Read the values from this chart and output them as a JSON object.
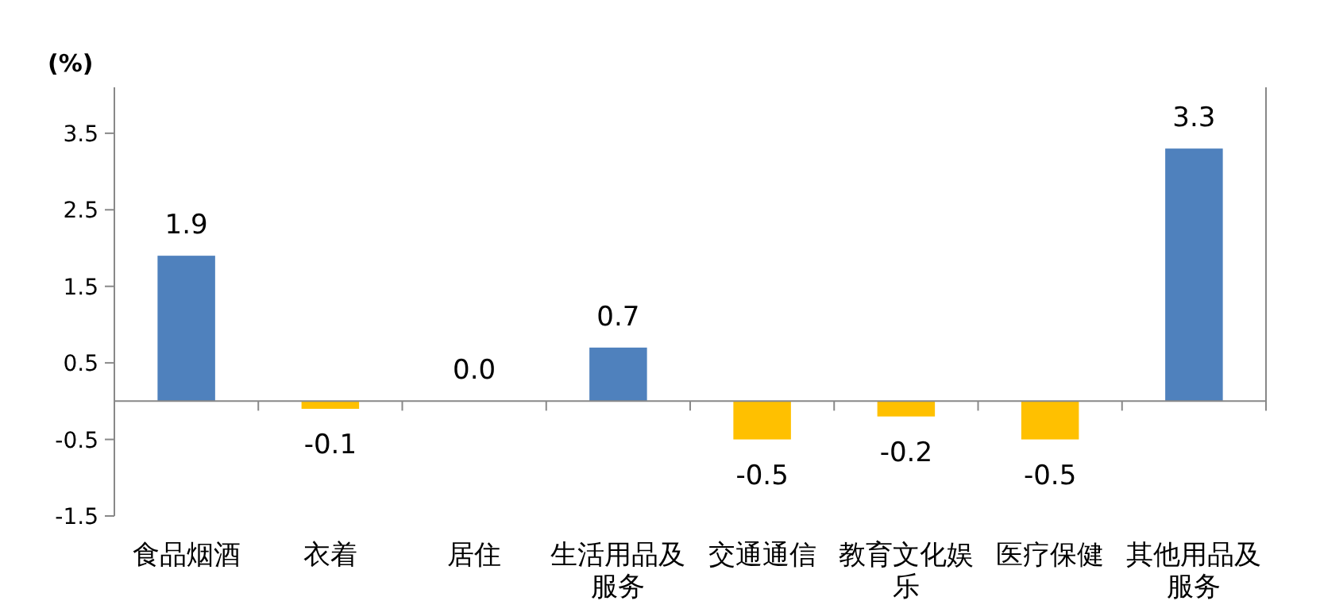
{
  "chart_data": {
    "type": "bar",
    "ylabel": "(%)",
    "categories": [
      "食品烟酒",
      "衣着",
      "居住",
      "生活用品及服务",
      "交通通信",
      "教育文化娱乐",
      "医疗保健",
      "其他用品及服务"
    ],
    "values": [
      1.9,
      -0.1,
      0.0,
      0.7,
      -0.5,
      -0.2,
      -0.5,
      3.3
    ],
    "colors": [
      "#4f81bd",
      "#ffc000",
      "#4f81bd",
      "#4f81bd",
      "#ffc000",
      "#ffc000",
      "#ffc000",
      "#4f81bd"
    ],
    "ylim": [
      -1.5,
      4.1
    ],
    "yticks": [
      -1.5,
      -0.5,
      0.5,
      1.5,
      2.5,
      3.5
    ],
    "value_labels": [
      "1.9",
      "-0.1",
      "0.0",
      "0.7",
      "-0.5",
      "-0.2",
      "-0.5",
      "3.3"
    ]
  }
}
